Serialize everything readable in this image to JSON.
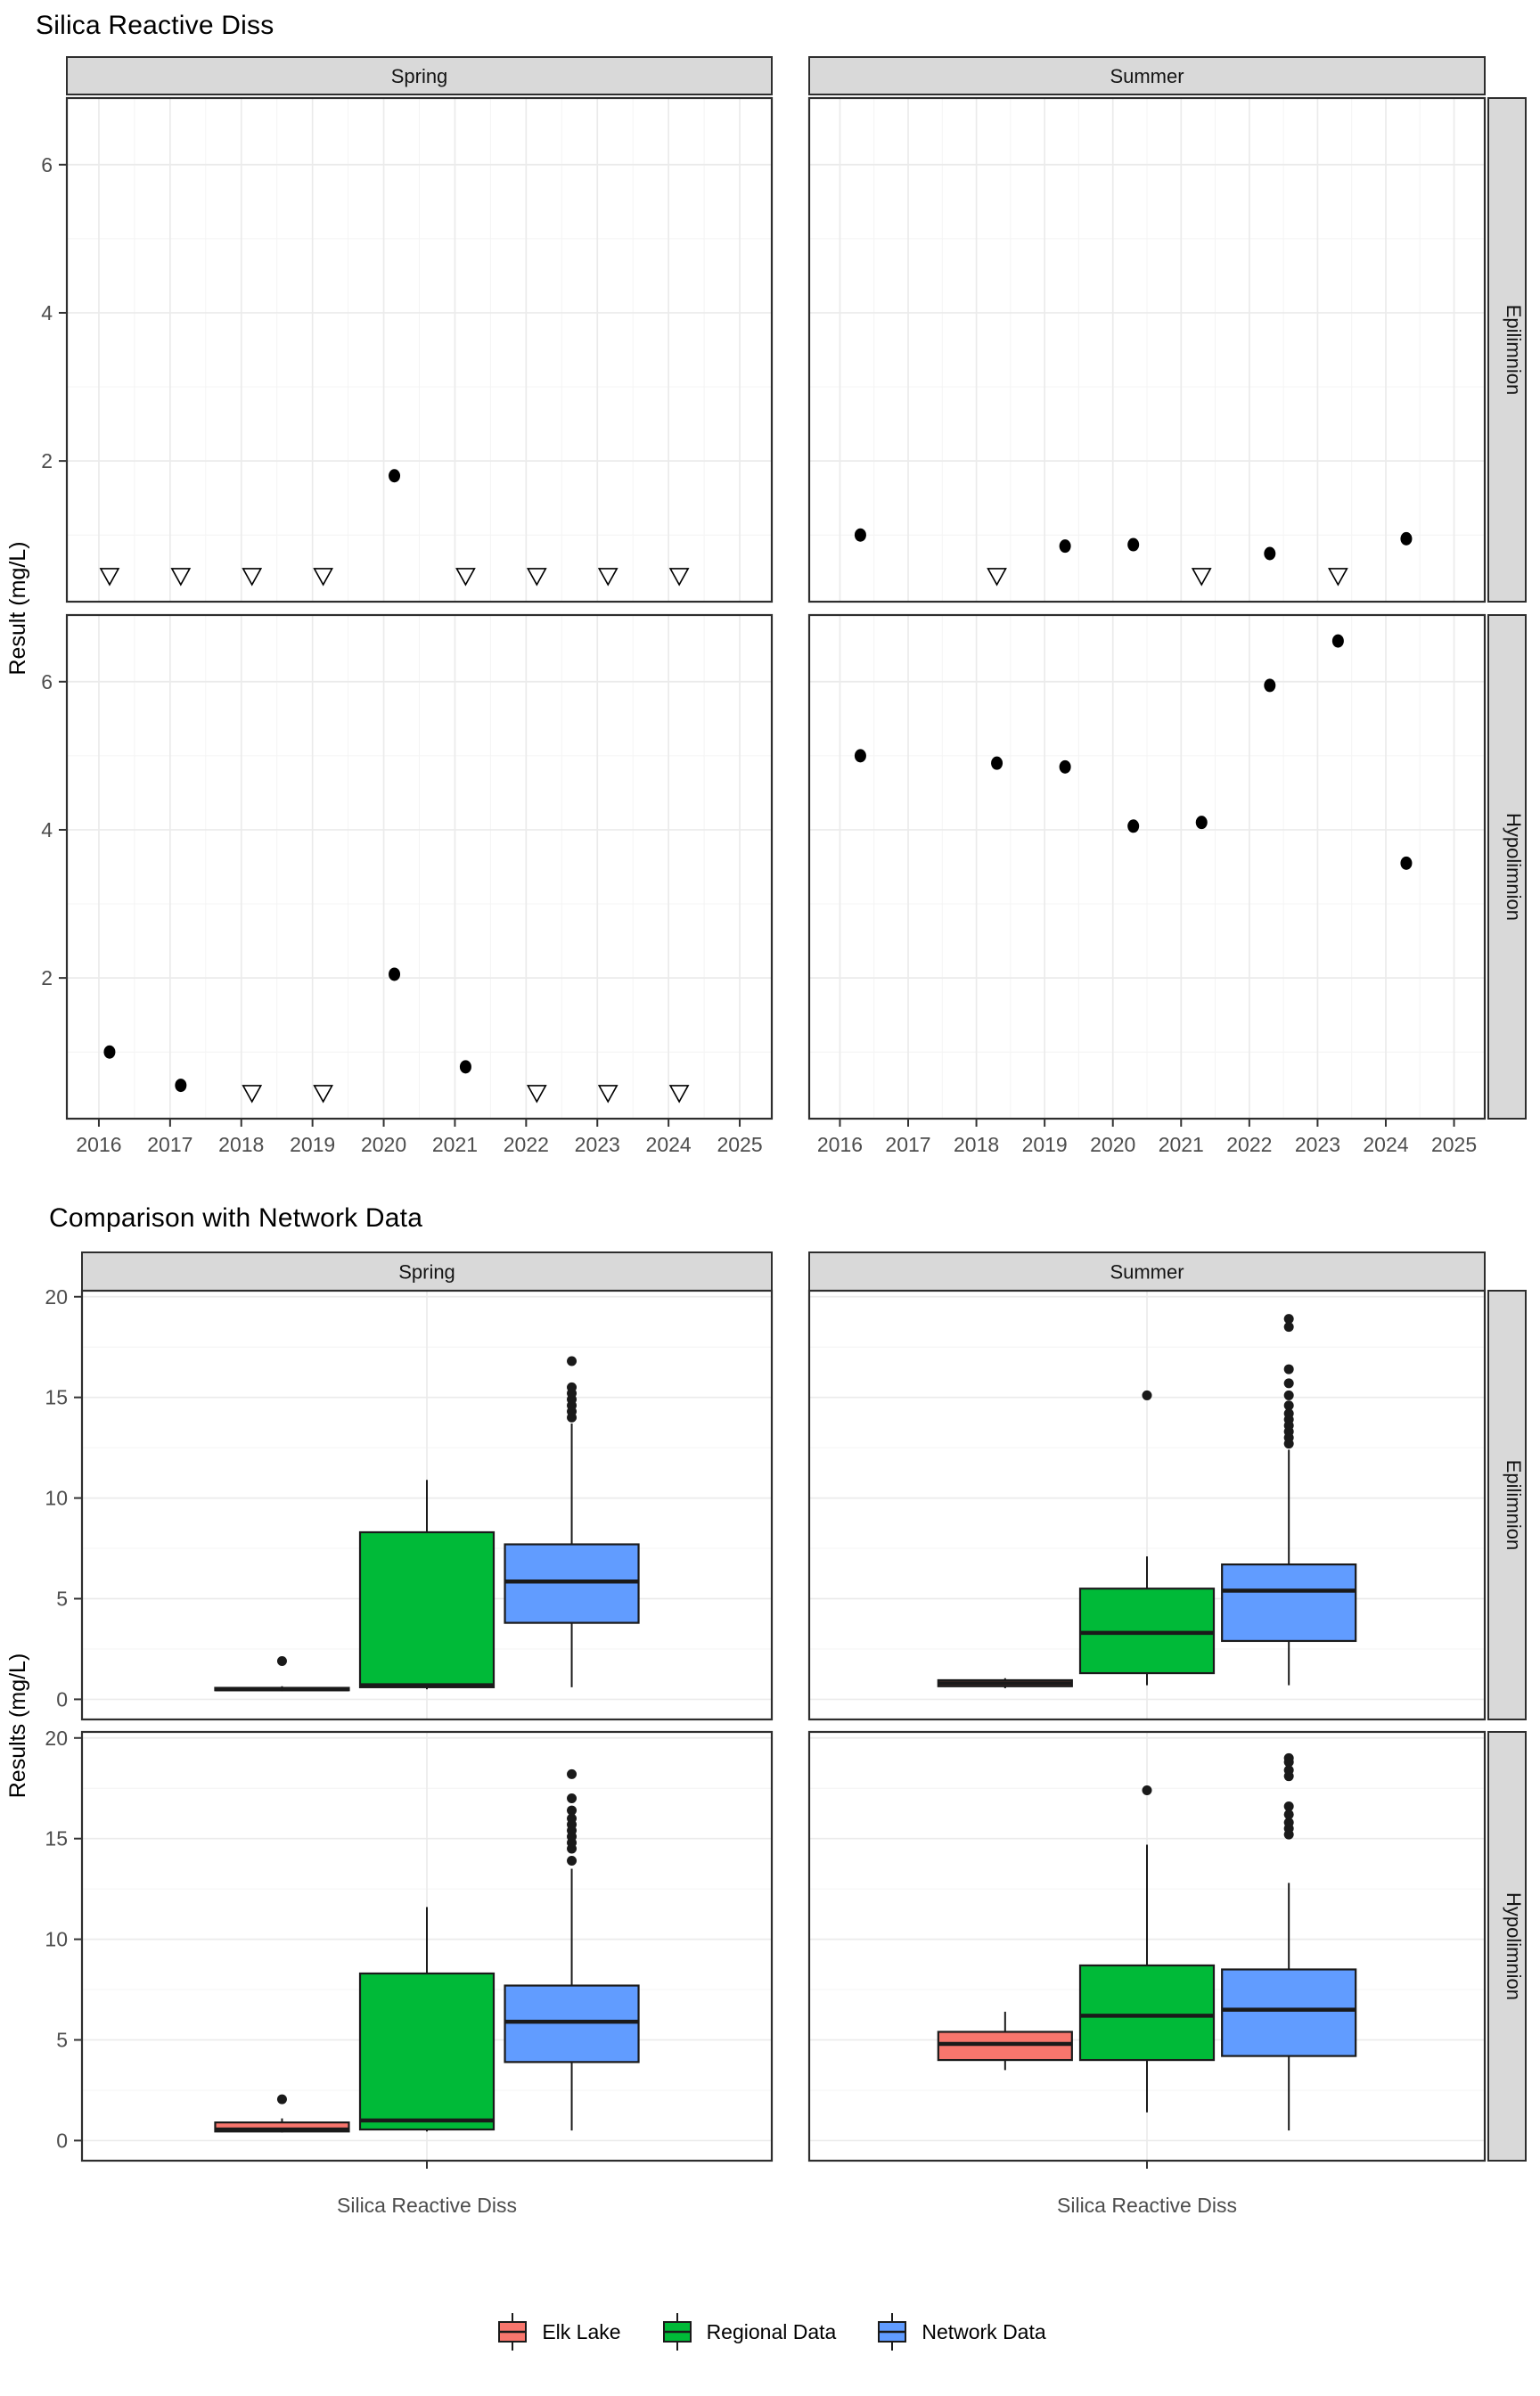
{
  "page": {
    "background": "#ffffff"
  },
  "colors": {
    "strip_bg": "#D9D9D9",
    "panel_border": "#2e2e2e",
    "grid_major": "#EBEBEB",
    "grid_minor": "#F4F4F4",
    "tick_text": "#4D4D4D",
    "mark": "#000000"
  },
  "legend": {
    "items": [
      {
        "label": "Elk Lake",
        "color": "#F8766D"
      },
      {
        "label": "Regional Data",
        "color": "#00BA38"
      },
      {
        "label": "Network Data",
        "color": "#619CFF"
      }
    ]
  },
  "chart_data": [
    {
      "type": "scatter",
      "title": "Silica Reactive Diss",
      "ylabel": "Result (mg/L)",
      "col_facets": [
        "Spring",
        "Summer"
      ],
      "row_facets": [
        "Epilimnion",
        "Hypolimnion"
      ],
      "x_ticks": [
        2016,
        2017,
        2018,
        2019,
        2020,
        2021,
        2022,
        2023,
        2024,
        2025
      ],
      "xlim": [
        2015.55,
        2025.45
      ],
      "ylim": [
        0.1,
        6.9
      ],
      "y_ticks": [
        2,
        4,
        6
      ],
      "y_minor": [
        1,
        3,
        5
      ],
      "grid": true,
      "nondetect_marker": "open-down-triangle",
      "nondetect_y": 0.45,
      "panels": [
        [
          {
            "points": [
              [
                2020.15,
                1.8
              ]
            ],
            "nondetects": [
              2016.15,
              2017.15,
              2018.15,
              2019.15,
              2021.15,
              2022.15,
              2023.15,
              2024.15
            ]
          },
          {
            "points": [
              [
                2016.3,
                1.0
              ],
              [
                2019.3,
                0.85
              ],
              [
                2020.3,
                0.87
              ],
              [
                2022.3,
                0.75
              ],
              [
                2024.3,
                0.95
              ]
            ],
            "nondetects": [
              2018.3,
              2021.3,
              2023.3
            ]
          }
        ],
        [
          {
            "points": [
              [
                2016.15,
                1.0
              ],
              [
                2017.15,
                0.55
              ],
              [
                2020.15,
                2.05
              ],
              [
                2021.15,
                0.8
              ]
            ],
            "nondetects": [
              2018.15,
              2019.15,
              2022.15,
              2023.15,
              2024.15
            ]
          },
          {
            "points": [
              [
                2016.3,
                5.0
              ],
              [
                2018.3,
                4.9
              ],
              [
                2019.3,
                4.85
              ],
              [
                2020.3,
                4.05
              ],
              [
                2021.3,
                4.1
              ],
              [
                2022.3,
                5.95
              ],
              [
                2023.3,
                6.55
              ],
              [
                2024.3,
                3.55
              ]
            ],
            "nondetects": []
          }
        ]
      ]
    },
    {
      "type": "boxplot",
      "title": "Comparison with Network Data",
      "ylabel": "Results (mg/L)",
      "x_category": "Silica Reactive Diss",
      "col_facets": [
        "Spring",
        "Summer"
      ],
      "row_facets": [
        "Epilimnion",
        "Hypolimnion"
      ],
      "ylim": [
        -1,
        20.3
      ],
      "y_ticks": [
        0,
        5,
        10,
        15,
        20
      ],
      "y_minor": [
        2.5,
        7.5,
        12.5,
        17.5
      ],
      "grid": true,
      "groups": [
        "Elk Lake",
        "Regional Data",
        "Network Data"
      ],
      "panels": [
        [
          [
            {
              "group": "Elk Lake",
              "whisker_low": 0.4,
              "q1": 0.45,
              "median": 0.5,
              "q3": 0.57,
              "whisker_high": 0.65,
              "outliers": [
                1.9
              ]
            },
            {
              "group": "Regional Data",
              "whisker_low": 0.5,
              "q1": 0.6,
              "median": 0.7,
              "q3": 8.3,
              "whisker_high": 10.9,
              "outliers": []
            },
            {
              "group": "Network Data",
              "whisker_low": 0.6,
              "q1": 3.8,
              "median": 5.85,
              "q3": 7.7,
              "whisker_high": 13.7,
              "outliers": [
                14.0,
                14.3,
                14.6,
                14.9,
                15.2,
                15.5,
                16.8
              ]
            }
          ],
          [
            {
              "group": "Elk Lake",
              "whisker_low": 0.55,
              "q1": 0.65,
              "median": 0.8,
              "q3": 0.95,
              "whisker_high": 1.05,
              "outliers": []
            },
            {
              "group": "Regional Data",
              "whisker_low": 0.7,
              "q1": 1.3,
              "median": 3.3,
              "q3": 5.5,
              "whisker_high": 7.1,
              "outliers": [
                15.1
              ]
            },
            {
              "group": "Network Data",
              "whisker_low": 0.7,
              "q1": 2.9,
              "median": 5.4,
              "q3": 6.7,
              "whisker_high": 12.4,
              "outliers": [
                12.7,
                13.0,
                13.3,
                13.6,
                13.9,
                14.2,
                14.6,
                15.1,
                15.7,
                16.4,
                18.5,
                18.9
              ]
            }
          ]
        ],
        [
          [
            {
              "group": "Elk Lake",
              "whisker_low": 0.4,
              "q1": 0.45,
              "median": 0.55,
              "q3": 0.9,
              "whisker_high": 1.1,
              "outliers": [
                2.05
              ]
            },
            {
              "group": "Regional Data",
              "whisker_low": 0.45,
              "q1": 0.55,
              "median": 1.0,
              "q3": 8.3,
              "whisker_high": 11.6,
              "outliers": []
            },
            {
              "group": "Network Data",
              "whisker_low": 0.5,
              "q1": 3.9,
              "median": 5.9,
              "q3": 7.7,
              "whisker_high": 13.5,
              "outliers": [
                13.9,
                14.5,
                14.8,
                15.1,
                15.4,
                15.7,
                16.0,
                16.4,
                17.0,
                18.2
              ]
            }
          ],
          [
            {
              "group": "Elk Lake",
              "whisker_low": 3.5,
              "q1": 4.0,
              "median": 4.8,
              "q3": 5.4,
              "whisker_high": 6.4,
              "outliers": []
            },
            {
              "group": "Regional Data",
              "whisker_low": 1.4,
              "q1": 4.0,
              "median": 6.2,
              "q3": 8.7,
              "whisker_high": 14.7,
              "outliers": [
                17.4
              ]
            },
            {
              "group": "Network Data",
              "whisker_low": 0.5,
              "q1": 4.2,
              "median": 6.5,
              "q3": 8.5,
              "whisker_high": 12.8,
              "outliers": [
                15.2,
                15.5,
                15.8,
                16.2,
                16.6,
                18.1,
                18.4,
                18.8,
                19.0
              ]
            }
          ]
        ]
      ]
    }
  ]
}
